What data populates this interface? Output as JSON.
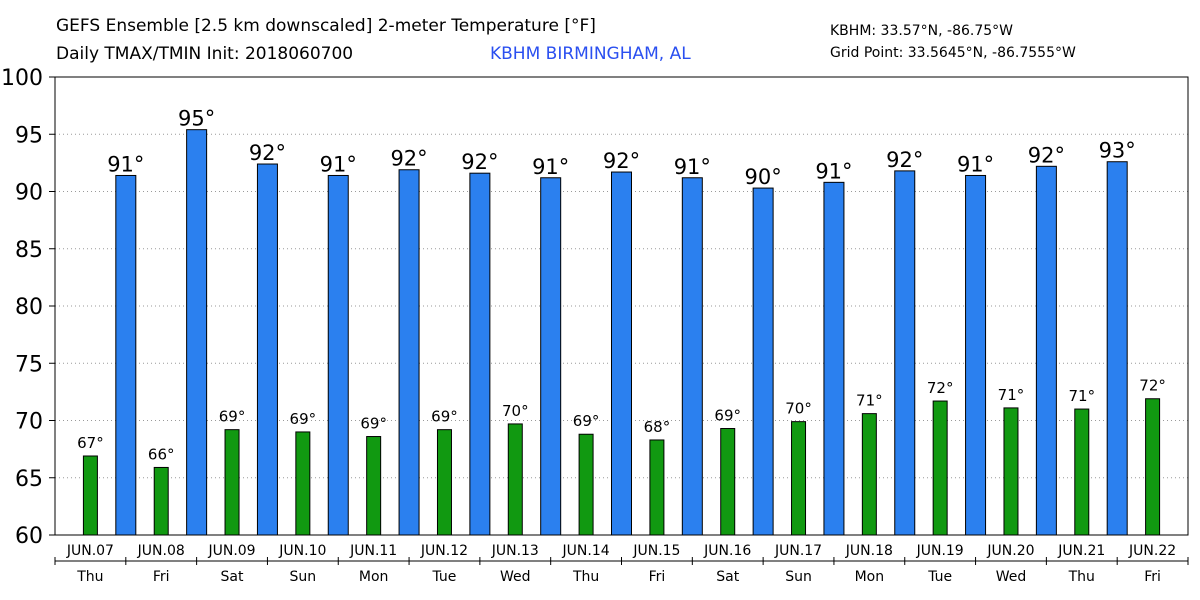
{
  "header": {
    "title_line1": "GEFS Ensemble [2.5 km downscaled] 2-meter Temperature [°F]",
    "title_line2": "Daily TMAX/TMIN Init: 2018060700",
    "station": "KBHM BIRMINGHAM, AL",
    "station_coords": "KBHM: 33.57°N, -86.75°W",
    "grid_point": "Grid Point: 33.5645°N, -86.7555°W"
  },
  "chart_data": {
    "type": "bar",
    "ylim": [
      60,
      100
    ],
    "yticks": [
      60,
      65,
      70,
      75,
      80,
      85,
      90,
      95,
      100
    ],
    "grid": true,
    "colors": {
      "tmax": "#2b80ef",
      "tmin": "#119911"
    },
    "days": [
      {
        "date": "JUN.07",
        "dow": "Thu",
        "tmin": 66.9,
        "tmax": 91.4,
        "tmin_label": "67°",
        "tmax_label": "91°"
      },
      {
        "date": "JUN.08",
        "dow": "Fri",
        "tmin": 65.9,
        "tmax": 95.4,
        "tmin_label": "66°",
        "tmax_label": "95°"
      },
      {
        "date": "JUN.09",
        "dow": "Sat",
        "tmin": 69.2,
        "tmax": 92.4,
        "tmin_label": "69°",
        "tmax_label": "92°"
      },
      {
        "date": "JUN.10",
        "dow": "Sun",
        "tmin": 69.0,
        "tmax": 91.4,
        "tmin_label": "69°",
        "tmax_label": "91°"
      },
      {
        "date": "JUN.11",
        "dow": "Mon",
        "tmin": 68.6,
        "tmax": 91.9,
        "tmin_label": "69°",
        "tmax_label": "92°"
      },
      {
        "date": "JUN.12",
        "dow": "Tue",
        "tmin": 69.2,
        "tmax": 91.6,
        "tmin_label": "69°",
        "tmax_label": "92°"
      },
      {
        "date": "JUN.13",
        "dow": "Wed",
        "tmin": 69.7,
        "tmax": 91.2,
        "tmin_label": "70°",
        "tmax_label": "91°"
      },
      {
        "date": "JUN.14",
        "dow": "Thu",
        "tmin": 68.8,
        "tmax": 91.7,
        "tmin_label": "69°",
        "tmax_label": "92°"
      },
      {
        "date": "JUN.15",
        "dow": "Fri",
        "tmin": 68.3,
        "tmax": 91.2,
        "tmin_label": "68°",
        "tmax_label": "91°"
      },
      {
        "date": "JUN.16",
        "dow": "Sat",
        "tmin": 69.3,
        "tmax": 90.3,
        "tmin_label": "69°",
        "tmax_label": "90°"
      },
      {
        "date": "JUN.17",
        "dow": "Sun",
        "tmin": 69.9,
        "tmax": 90.8,
        "tmin_label": "70°",
        "tmax_label": "91°"
      },
      {
        "date": "JUN.18",
        "dow": "Mon",
        "tmin": 70.6,
        "tmax": 91.8,
        "tmin_label": "71°",
        "tmax_label": "92°"
      },
      {
        "date": "JUN.19",
        "dow": "Tue",
        "tmin": 71.7,
        "tmax": 91.4,
        "tmin_label": "72°",
        "tmax_label": "91°"
      },
      {
        "date": "JUN.20",
        "dow": "Wed",
        "tmin": 71.1,
        "tmax": 92.2,
        "tmin_label": "71°",
        "tmax_label": "92°"
      },
      {
        "date": "JUN.21",
        "dow": "Thu",
        "tmin": 71.0,
        "tmax": 92.6,
        "tmin_label": "71°",
        "tmax_label": "93°"
      },
      {
        "date": "JUN.22",
        "dow": "Fri",
        "tmin": 71.9,
        "tmax": null,
        "tmin_label": "72°",
        "tmax_label": ""
      }
    ]
  }
}
